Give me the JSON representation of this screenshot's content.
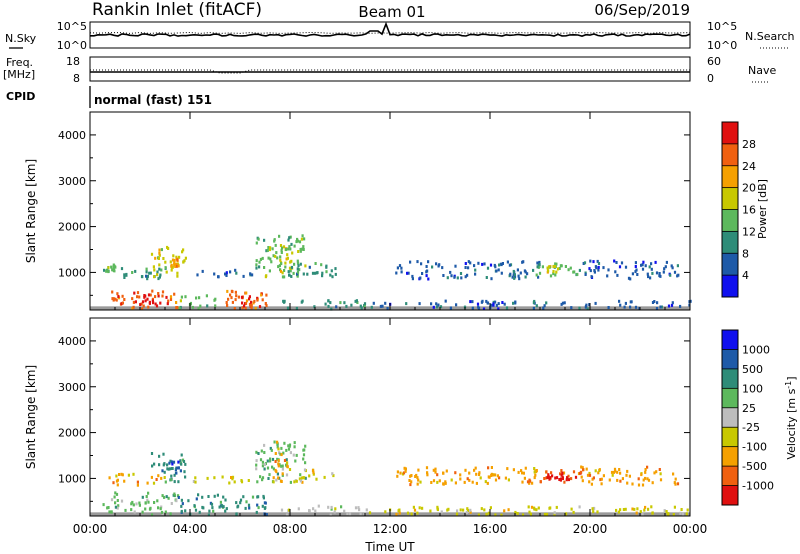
{
  "header": {
    "station": "Rankin Inlet (fitACF)",
    "beam": "Beam 01",
    "date": "06/Sep/2019"
  },
  "noise_panel": {
    "left_label": "N.Sky",
    "right_label": "N.Search",
    "left_ticks": [
      "10^5",
      "10^0"
    ],
    "right_ticks": [
      "10^5",
      "10^0"
    ]
  },
  "freq_panel": {
    "left_label_line1": "Freq.",
    "left_label_line2": "[MHz]",
    "right_label": "Nave",
    "left_ticks": [
      "18",
      "8"
    ],
    "right_ticks": [
      "60",
      "0"
    ]
  },
  "cpid": {
    "label": "CPID",
    "value": "normal (fast) 151"
  },
  "colors": {
    "power": [
      "#1010ee",
      "#1e5aa8",
      "#2e8c78",
      "#5cb85c",
      "#c8c800",
      "#f5a000",
      "#f06010",
      "#e01010"
    ],
    "velocity": [
      "#e01010",
      "#f06010",
      "#f5a000",
      "#c8c800",
      "#bdbdbd",
      "#5cb85c",
      "#2e8c78",
      "#1e5aa8",
      "#1010ee"
    ],
    "ground": "#9a9a9a"
  },
  "chart_data": [
    {
      "type": "heatmap",
      "title": "",
      "ylabel": "Slant Range [km]",
      "ylim": [
        180,
        4500
      ],
      "yticks": [
        "1000",
        "2000",
        "3000",
        "4000"
      ],
      "xticks": [
        "00:00",
        "04:00",
        "08:00",
        "12:00",
        "16:00",
        "20:00",
        "00:00"
      ],
      "xlim": [
        "00:00",
        "24:00"
      ],
      "colorbar": {
        "label": "Power [dB]",
        "ticks": [
          "4",
          "8",
          "12",
          "16",
          "20",
          "24",
          "28"
        ],
        "range": [
          0,
          32
        ]
      },
      "regions": [
        {
          "t": [
            0.5,
            3.0
          ],
          "r": [
            850,
            1100
          ],
          "level": 2
        },
        {
          "t": [
            2.4,
            3.8
          ],
          "r": [
            900,
            1550
          ],
          "level": 4
        },
        {
          "t": [
            3.2,
            3.5
          ],
          "r": [
            1100,
            1300
          ],
          "level": 5
        },
        {
          "t": [
            0.5,
            1.0
          ],
          "r": [
            1000,
            1200
          ],
          "level": 3
        },
        {
          "t": [
            4.0,
            6.5
          ],
          "r": [
            900,
            1050
          ],
          "level": 1
        },
        {
          "t": [
            6.6,
            8.6
          ],
          "r": [
            900,
            1800
          ],
          "level": 3
        },
        {
          "t": [
            7.1,
            8.1
          ],
          "r": [
            1000,
            1600
          ],
          "level": 4
        },
        {
          "t": [
            7.9,
            9.8
          ],
          "r": [
            900,
            1200
          ],
          "level": 2
        },
        {
          "t": [
            12.2,
            18.0
          ],
          "r": [
            850,
            1250
          ],
          "level": 1
        },
        {
          "t": [
            17.5,
            19.6
          ],
          "r": [
            900,
            1200
          ],
          "level": 3
        },
        {
          "t": [
            18.2,
            18.9
          ],
          "r": [
            1000,
            1150
          ],
          "level": 4
        },
        {
          "t": [
            19.6,
            23.5
          ],
          "r": [
            850,
            1250
          ],
          "level": 1
        },
        {
          "t": [
            0.8,
            3.5
          ],
          "r": [
            200,
            600
          ],
          "level": 6
        },
        {
          "t": [
            1.5,
            3.1
          ],
          "r": [
            250,
            550
          ],
          "level": 7
        },
        {
          "t": [
            3.5,
            5.0
          ],
          "r": [
            200,
            500
          ],
          "level": 3
        },
        {
          "t": [
            5.2,
            7.3
          ],
          "r": [
            200,
            600
          ],
          "level": 6
        },
        {
          "t": [
            5.8,
            6.8
          ],
          "r": [
            250,
            500
          ],
          "level": 7
        },
        {
          "t": [
            7.5,
            11.0
          ],
          "r": [
            200,
            400
          ],
          "level": 2
        },
        {
          "t": [
            11.0,
            24.0
          ],
          "r": [
            200,
            380
          ],
          "level": 1
        }
      ],
      "ground_scatter": {
        "t": [
          0,
          24
        ],
        "r": [
          180,
          260
        ]
      }
    },
    {
      "type": "heatmap",
      "title": "",
      "ylabel": "Slant Range [km]",
      "ylim": [
        180,
        4500
      ],
      "yticks": [
        "1000",
        "2000",
        "3000",
        "4000"
      ],
      "xticks": [
        "00:00",
        "04:00",
        "08:00",
        "12:00",
        "16:00",
        "20:00",
        "00:00"
      ],
      "xlim": [
        "00:00",
        "24:00"
      ],
      "xlabel": "Time UT",
      "colorbar": {
        "label": "Velocity [m s",
        "label_sup": "-1",
        "label_close": "]",
        "ticks": [
          "-1000",
          "-500",
          "-100",
          "-25",
          "25",
          "100",
          "500",
          "1000"
        ]
      },
      "regions": [
        {
          "t": [
            0.5,
            3.0
          ],
          "r": [
            850,
            1100
          ],
          "level": 2
        },
        {
          "t": [
            2.4,
            3.8
          ],
          "r": [
            900,
            1550
          ],
          "level": 6
        },
        {
          "t": [
            3.1,
            3.6
          ],
          "r": [
            1100,
            1400
          ],
          "level": 7
        },
        {
          "t": [
            4.0,
            6.5
          ],
          "r": [
            900,
            1050
          ],
          "level": 3
        },
        {
          "t": [
            6.6,
            8.6
          ],
          "r": [
            900,
            1800
          ],
          "level": 5
        },
        {
          "t": [
            7.3,
            7.9
          ],
          "r": [
            900,
            1800
          ],
          "level": 2
        },
        {
          "t": [
            7.9,
            9.8
          ],
          "r": [
            900,
            1200
          ],
          "level": 3
        },
        {
          "t": [
            12.2,
            18.0
          ],
          "r": [
            850,
            1250
          ],
          "level": 2
        },
        {
          "t": [
            17.5,
            19.6
          ],
          "r": [
            900,
            1200
          ],
          "level": 1
        },
        {
          "t": [
            18.2,
            18.9
          ],
          "r": [
            950,
            1150
          ],
          "level": 0
        },
        {
          "t": [
            19.6,
            23.5
          ],
          "r": [
            850,
            1250
          ],
          "level": 2
        },
        {
          "t": [
            0.5,
            3.5
          ],
          "r": [
            200,
            700
          ],
          "level": 5
        },
        {
          "t": [
            3.5,
            7.3
          ],
          "r": [
            200,
            650
          ],
          "level": 6
        },
        {
          "t": [
            7.5,
            11.0
          ],
          "r": [
            200,
            400
          ],
          "level": 4
        },
        {
          "t": [
            11.0,
            24.0
          ],
          "r": [
            200,
            380
          ],
          "level": 3
        }
      ],
      "ground_scatter": {
        "t": [
          0,
          24
        ],
        "r": [
          180,
          260
        ]
      }
    }
  ]
}
